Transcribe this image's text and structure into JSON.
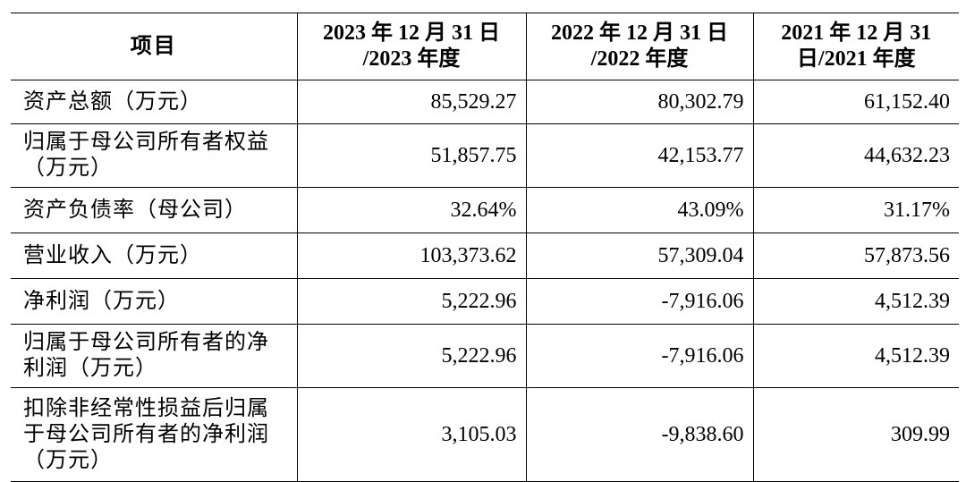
{
  "table": {
    "header": [
      [
        "项目"
      ],
      [
        "2023 年 12 月 31 日",
        "/2023 年度"
      ],
      [
        "2022 年 12 月 31 日",
        "/2022 年度"
      ],
      [
        "2021 年 12 月 31",
        "日/2021 年度"
      ]
    ],
    "rows": [
      {
        "label": [
          "资产总额（万元）"
        ],
        "values": [
          "85,529.27",
          "80,302.79",
          "61,152.40"
        ]
      },
      {
        "label": [
          "归属于母公司所有者权益",
          "（万元）"
        ],
        "values": [
          "51,857.75",
          "42,153.77",
          "44,632.23"
        ]
      },
      {
        "label": [
          "资产负债率（母公司）"
        ],
        "values": [
          "32.64%",
          "43.09%",
          "31.17%"
        ]
      },
      {
        "label": [
          "营业收入（万元）"
        ],
        "values": [
          "103,373.62",
          "57,309.04",
          "57,873.56"
        ]
      },
      {
        "label": [
          "净利润（万元）"
        ],
        "values": [
          "5,222.96",
          "-7,916.06",
          "4,512.39"
        ]
      },
      {
        "label": [
          "归属于母公司所有者的净",
          "利润（万元）"
        ],
        "values": [
          "5,222.96",
          "-7,916.06",
          "4,512.39"
        ]
      },
      {
        "label": [
          "扣除非经常性损益后归属",
          "于母公司所有者的净利润",
          "（万元）"
        ],
        "values": [
          "3,105.03",
          "-9,838.60",
          "309.99"
        ]
      }
    ]
  }
}
